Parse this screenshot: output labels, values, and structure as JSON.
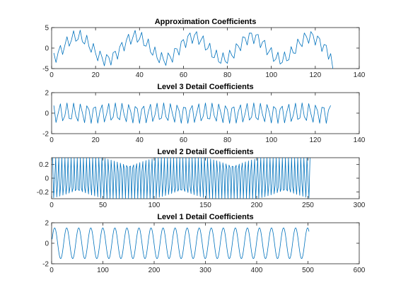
{
  "figure": {
    "background": "#ffffff",
    "line_color": "#0072BD"
  },
  "chart_data": [
    {
      "type": "line",
      "title": "Approximation Coefficients",
      "xlim": [
        0,
        140
      ],
      "ylim": [
        -5,
        5
      ],
      "xticks": [
        0,
        20,
        40,
        60,
        80,
        100,
        120,
        140
      ],
      "yticks": [
        -5,
        0,
        5
      ],
      "series": [
        {
          "n": 128,
          "x_start": 1,
          "x_step": 1,
          "components": [
            {
              "amplitude": 2.8,
              "period": 26.5,
              "phase": -1.2
            },
            {
              "amplitude": 1.7,
              "period": 3.1,
              "phase": 0.4
            },
            {
              "amplitude": 0.6,
              "period": 2.0,
              "phase": 0.0
            }
          ],
          "final_value": -5
        }
      ]
    },
    {
      "type": "line",
      "title": "Level 3 Detail Coefficients",
      "xlim": [
        0,
        140
      ],
      "ylim": [
        -2,
        2
      ],
      "xticks": [
        0,
        20,
        40,
        60,
        80,
        100,
        120,
        140
      ],
      "yticks": [
        -2,
        0,
        2
      ],
      "series": [
        {
          "n": 127,
          "x_start": 1,
          "x_step": 1,
          "components": [
            {
              "amplitude": 1.0,
              "period": 3.15,
              "phase": 0.3
            },
            {
              "amplitude": 0.35,
              "period": 2.0,
              "phase": 0.0
            }
          ]
        }
      ]
    },
    {
      "type": "line",
      "title": "Level 2 Detail Coefficients",
      "xlim": [
        0,
        300
      ],
      "ylim": [
        -0.3,
        0.3
      ],
      "xticks": [
        0,
        50,
        100,
        150,
        200,
        250,
        300
      ],
      "yticks": [
        -0.2,
        0,
        0.2
      ],
      "series": [
        {
          "n": 252,
          "x_start": 1,
          "x_step": 1,
          "components": [
            {
              "amplitude": 0.34,
              "period": 3.03,
              "phase": 0.0
            }
          ],
          "clip": [
            -0.3,
            0.3
          ]
        }
      ]
    },
    {
      "type": "line",
      "title": "Level 1 Detail Coefficients",
      "xlim": [
        0,
        600
      ],
      "ylim": [
        -2,
        2
      ],
      "xticks": [
        0,
        100,
        200,
        300,
        400,
        500,
        600
      ],
      "yticks": [
        -2,
        0,
        2
      ],
      "series": [
        {
          "n": 502,
          "x_start": 1,
          "x_step": 1,
          "components": [
            {
              "amplitude": 1.5,
              "period": 23.5,
              "phase": 0.0
            }
          ]
        }
      ]
    }
  ]
}
